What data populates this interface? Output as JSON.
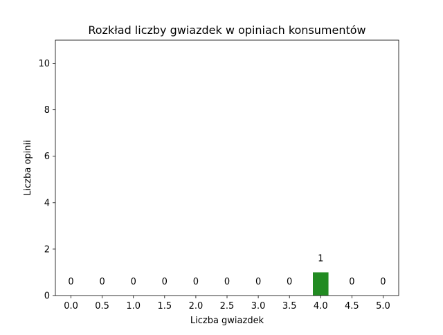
{
  "chart_data": {
    "type": "bar",
    "title": "Rozkład liczby gwiazdek w opiniach konsumentów",
    "xlabel": "Liczba gwiazdek",
    "ylabel": "Liczba opinii",
    "categories": [
      "0.0",
      "0.5",
      "1.0",
      "1.5",
      "2.0",
      "2.5",
      "3.0",
      "3.5",
      "4.0",
      "4.5",
      "5.0"
    ],
    "values": [
      0,
      0,
      0,
      0,
      0,
      0,
      0,
      0,
      1,
      0,
      0
    ],
    "data_labels": [
      "0",
      "0",
      "0",
      "0",
      "0",
      "0",
      "0",
      "0",
      "1",
      "0",
      "0"
    ],
    "ylim": [
      0,
      11
    ],
    "yticks": [
      0,
      2,
      4,
      6,
      8,
      10
    ],
    "ytick_labels": [
      "0",
      "2",
      "4",
      "6",
      "8",
      "10"
    ],
    "grid": false,
    "bar_color": "#228b22"
  }
}
